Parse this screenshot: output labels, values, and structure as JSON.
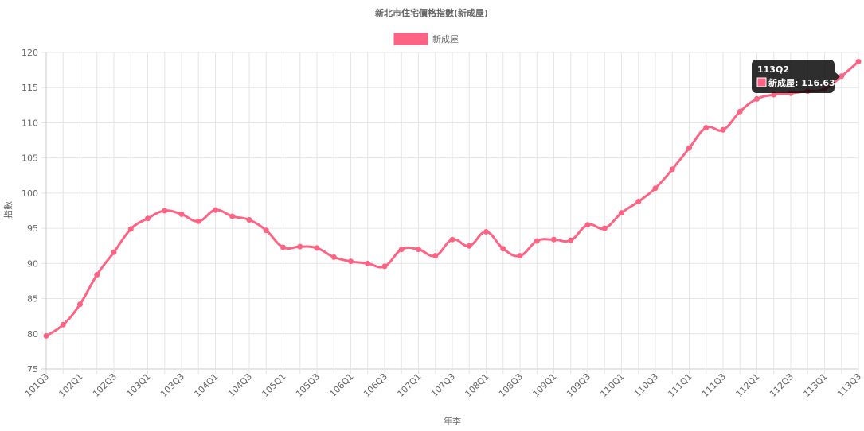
{
  "chart_data": {
    "type": "line",
    "title": "新北市住宅價格指數(新成屋)",
    "xlabel": "年季",
    "ylabel": "指數",
    "ylim": [
      75,
      120
    ],
    "yticks": [
      75,
      80,
      85,
      90,
      95,
      100,
      105,
      110,
      115,
      120
    ],
    "grid": true,
    "legend_position": "top",
    "x": [
      "101Q3",
      "101Q4",
      "102Q1",
      "102Q2",
      "102Q3",
      "102Q4",
      "103Q1",
      "103Q2",
      "103Q3",
      "103Q4",
      "104Q1",
      "104Q2",
      "104Q3",
      "104Q4",
      "105Q1",
      "105Q2",
      "105Q3",
      "105Q4",
      "106Q1",
      "106Q2",
      "106Q3",
      "106Q4",
      "107Q1",
      "107Q2",
      "107Q3",
      "107Q4",
      "108Q1",
      "108Q2",
      "108Q3",
      "108Q4",
      "109Q1",
      "109Q2",
      "109Q3",
      "109Q4",
      "110Q1",
      "110Q2",
      "110Q3",
      "110Q4",
      "111Q1",
      "111Q2",
      "111Q3",
      "111Q4",
      "112Q1",
      "112Q2",
      "112Q3",
      "112Q4",
      "113Q1",
      "113Q2",
      "113Q3"
    ],
    "x_tick_labels": [
      "101Q3",
      "102Q1",
      "102Q3",
      "103Q1",
      "103Q3",
      "104Q1",
      "104Q3",
      "105Q1",
      "105Q3",
      "106Q1",
      "106Q3",
      "107Q1",
      "107Q3",
      "108Q1",
      "108Q3",
      "109Q1",
      "109Q3",
      "110Q1",
      "110Q3",
      "111Q1",
      "111Q3",
      "112Q1",
      "112Q3",
      "113Q1",
      "113Q3"
    ],
    "series": [
      {
        "name": "新成屋",
        "color": "#ff6384",
        "values": [
          79.7,
          81.3,
          84.2,
          88.4,
          91.6,
          94.9,
          96.4,
          97.5,
          97.0,
          96.0,
          97.6,
          96.7,
          96.2,
          94.7,
          92.3,
          92.4,
          92.2,
          90.9,
          90.3,
          90.0,
          89.6,
          92.0,
          92.0,
          91.1,
          93.4,
          92.5,
          94.5,
          92.1,
          91.1,
          93.2,
          93.4,
          93.3,
          95.5,
          95.0,
          97.2,
          98.8,
          100.7,
          103.4,
          106.4,
          109.3,
          109.0,
          111.6,
          113.4,
          114.0,
          114.2,
          114.5,
          114.8,
          116.63,
          118.7
        ]
      }
    ],
    "tooltip": {
      "title": "113Q2",
      "label": "新成屋: 116.63",
      "index": 47
    }
  }
}
